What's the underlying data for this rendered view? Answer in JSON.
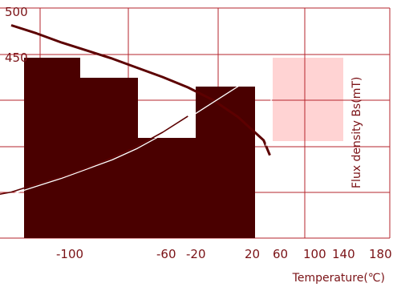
{
  "chart_data": {
    "type": "line",
    "title": "",
    "xlabel": "Temperature(℃)",
    "ylabel": "Flux density Bs(mT)",
    "xlim": [
      -100,
      200
    ],
    "ylim": [
      300,
      500
    ],
    "grid": true,
    "x_tick_labels": [
      "-100",
      "-60",
      "-20",
      "20",
      "60",
      "100",
      "140",
      "180"
    ],
    "y_tick_labels": [
      "500",
      "450"
    ],
    "colors": {
      "series": "#5c0000",
      "grid": "#b5262c",
      "text": "#7a1216",
      "block": "#4a0000",
      "band": "#ffd3d3"
    },
    "series": [
      {
        "x": [
          -100,
          -80,
          -60,
          -40,
          -20,
          0,
          20,
          40,
          60,
          80,
          100,
          105
        ],
        "y": [
          485,
          478,
          470,
          463,
          456,
          448,
          440,
          431,
          420,
          405,
          385,
          372
        ]
      },
      {
        "x": [
          -100,
          -80,
          -60,
          -40,
          -20,
          0,
          20,
          40,
          60,
          80,
          100,
          104,
          106,
          106,
          104,
          102
        ],
        "y": [
          338,
          345,
          352,
          360,
          368,
          378,
          390,
          404,
          418,
          432,
          444,
          448,
          446,
          420,
          395,
          380
        ]
      },
      {
        "x": [
          -120,
          -100,
          -80,
          -60,
          -40,
          -20,
          0,
          20,
          40
        ],
        "y": [
          336,
          340,
          347,
          353,
          361,
          370,
          380,
          392,
          406
        ]
      }
    ]
  }
}
